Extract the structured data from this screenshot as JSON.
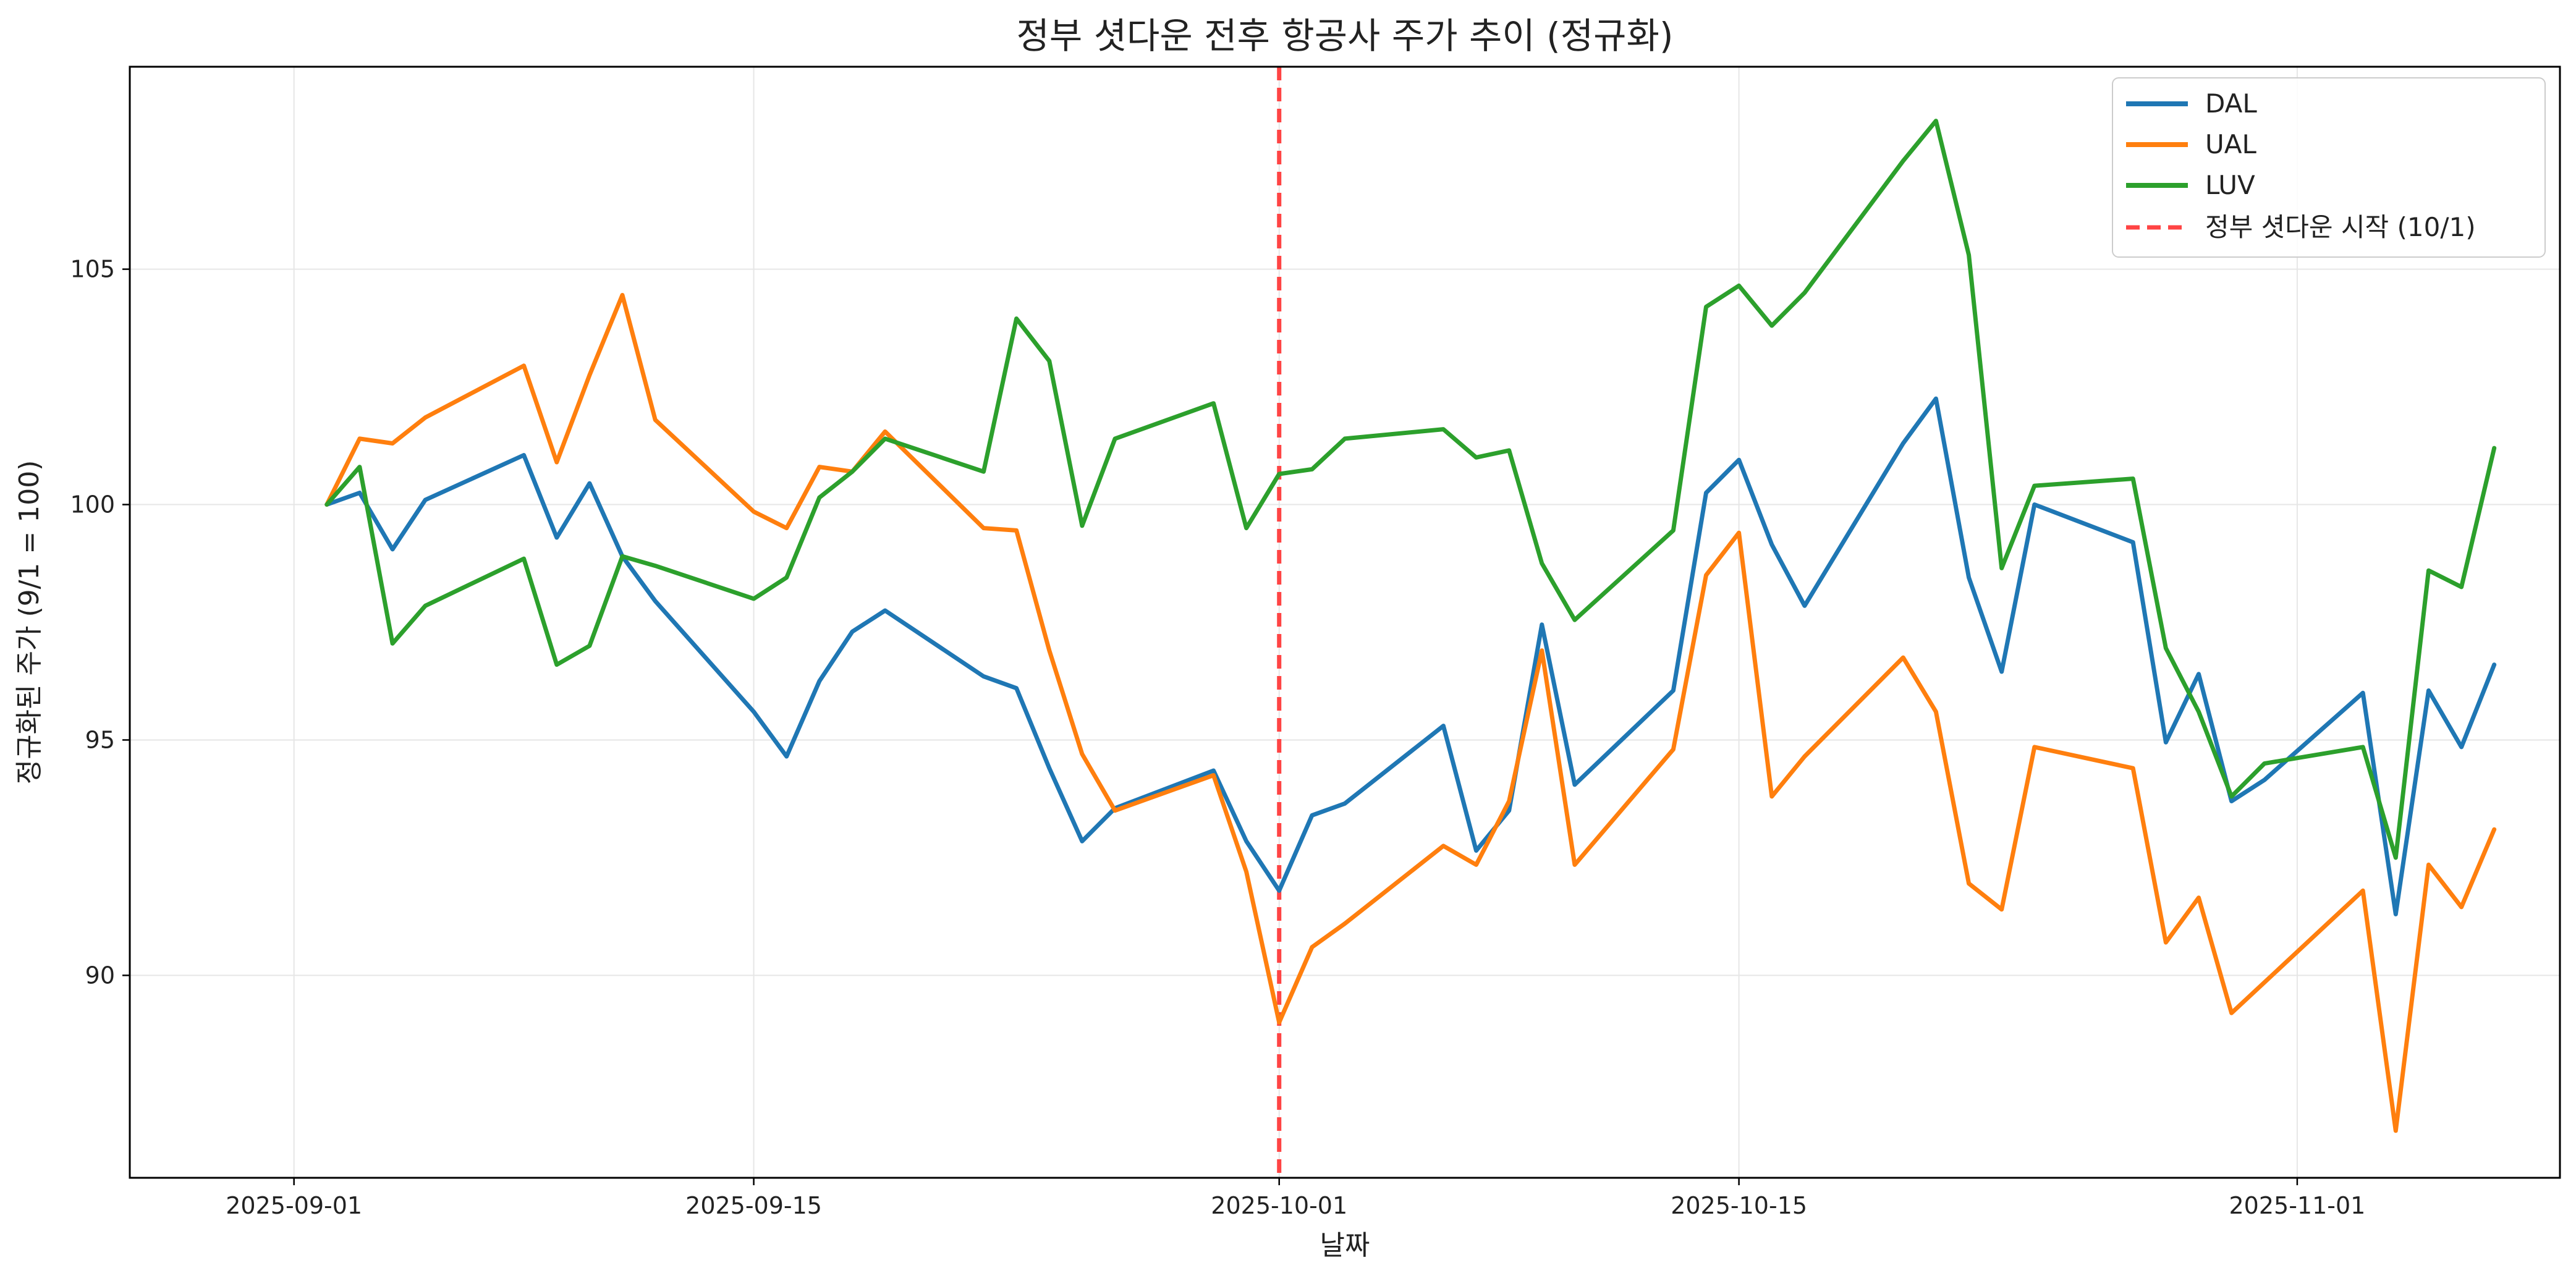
{
  "chart_data": {
    "type": "line",
    "title": "정부 셧다운 전후 항공사 주가 추이 (정규화)",
    "xlabel": "날짜",
    "ylabel": "정규화된 주가 (9/1 = 100)",
    "x_tick_labels": [
      "2025-09-01",
      "2025-09-15",
      "2025-10-01",
      "2025-10-15",
      "2025-11-01"
    ],
    "y_tick_labels": [
      "90",
      "95",
      "100",
      "105"
    ],
    "xlim": [
      "2025-08-27",
      "2025-11-09"
    ],
    "ylim": [
      85.7,
      109.3
    ],
    "grid": true,
    "legend_position": "top-right",
    "x": [
      "2025-09-02",
      "2025-09-03",
      "2025-09-04",
      "2025-09-05",
      "2025-09-08",
      "2025-09-09",
      "2025-09-10",
      "2025-09-11",
      "2025-09-12",
      "2025-09-15",
      "2025-09-16",
      "2025-09-17",
      "2025-09-18",
      "2025-09-19",
      "2025-09-22",
      "2025-09-23",
      "2025-09-24",
      "2025-09-25",
      "2025-09-26",
      "2025-09-29",
      "2025-09-30",
      "2025-10-01",
      "2025-10-02",
      "2025-10-03",
      "2025-10-06",
      "2025-10-07",
      "2025-10-08",
      "2025-10-09",
      "2025-10-10",
      "2025-10-13",
      "2025-10-14",
      "2025-10-15",
      "2025-10-16",
      "2025-10-17",
      "2025-10-20",
      "2025-10-21",
      "2025-10-22",
      "2025-10-23",
      "2025-10-24",
      "2025-10-27",
      "2025-10-28",
      "2025-10-29",
      "2025-10-30",
      "2025-10-31",
      "2025-11-03",
      "2025-11-04",
      "2025-11-05",
      "2025-11-06",
      "2025-11-07"
    ],
    "series": [
      {
        "name": "DAL",
        "color": "#1f77b4",
        "values": [
          100.0,
          100.25,
          99.05,
          100.1,
          101.05,
          99.3,
          100.45,
          98.9,
          97.95,
          95.6,
          94.65,
          96.25,
          97.3,
          97.75,
          96.35,
          96.1,
          94.4,
          92.85,
          93.55,
          94.35,
          92.85,
          91.8,
          93.4,
          93.65,
          95.3,
          92.65,
          93.5,
          97.45,
          94.05,
          96.05,
          100.25,
          100.95,
          99.15,
          97.85,
          101.3,
          102.25,
          98.45,
          96.45,
          100.0,
          99.2,
          94.95,
          96.4,
          93.7,
          94.15,
          96.0,
          91.3,
          96.05,
          94.85,
          96.6
        ]
      },
      {
        "name": "UAL",
        "color": "#ff7f0e",
        "values": [
          100.0,
          101.4,
          101.3,
          101.85,
          102.95,
          100.9,
          102.75,
          104.45,
          101.8,
          99.85,
          99.5,
          100.8,
          100.7,
          101.55,
          99.5,
          99.45,
          96.9,
          94.7,
          93.5,
          94.25,
          92.2,
          89.0,
          90.6,
          91.1,
          92.75,
          92.35,
          93.7,
          96.9,
          92.35,
          94.8,
          98.5,
          99.4,
          93.8,
          94.65,
          96.75,
          95.6,
          91.95,
          91.4,
          94.85,
          94.4,
          90.7,
          91.65,
          89.2,
          89.85,
          91.8,
          86.7,
          92.35,
          91.45,
          93.1
        ]
      },
      {
        "name": "LUV",
        "color": "#2ca02c",
        "values": [
          100.0,
          100.8,
          97.05,
          97.85,
          98.85,
          96.6,
          97.0,
          98.9,
          98.7,
          98.0,
          98.45,
          100.15,
          100.7,
          101.4,
          100.7,
          103.95,
          103.05,
          99.55,
          101.4,
          102.15,
          99.5,
          100.65,
          100.75,
          101.4,
          101.6,
          101.0,
          101.15,
          98.75,
          97.55,
          99.45,
          104.2,
          104.65,
          103.8,
          104.5,
          107.3,
          108.15,
          105.3,
          98.65,
          100.4,
          100.55,
          96.95,
          95.6,
          93.8,
          94.5,
          94.85,
          92.5,
          98.6,
          98.25,
          101.2
        ]
      }
    ],
    "annotation": {
      "label": "정부 셧다운 시작 (10/1)",
      "x": "2025-10-01",
      "color": "#ff4444",
      "style": "dashed"
    }
  }
}
